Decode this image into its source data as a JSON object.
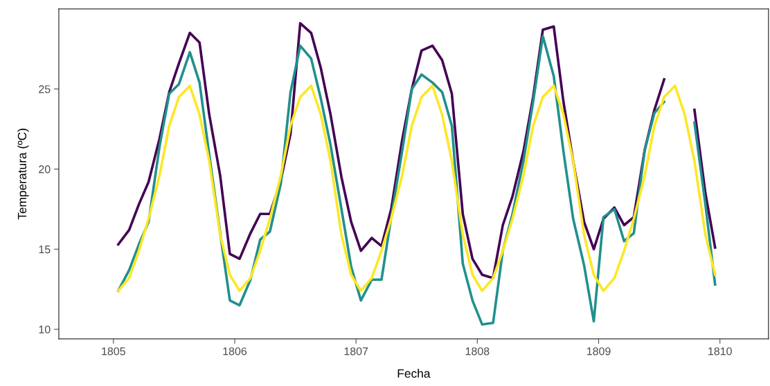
{
  "chart_data": {
    "type": "line",
    "xlabel": "Fecha",
    "ylabel": "Temperatura (ºC)",
    "x": [
      1805.04,
      1805.13,
      1805.21,
      1805.29,
      1805.38,
      1805.46,
      1805.54,
      1805.63,
      1805.71,
      1805.79,
      1805.88,
      1805.96,
      1806.04,
      1806.13,
      1806.21,
      1806.29,
      1806.38,
      1806.46,
      1806.54,
      1806.63,
      1806.71,
      1806.79,
      1806.88,
      1806.96,
      1807.04,
      1807.13,
      1807.21,
      1807.29,
      1807.38,
      1807.46,
      1807.54,
      1807.63,
      1807.71,
      1807.79,
      1807.88,
      1807.96,
      1808.04,
      1808.13,
      1808.21,
      1808.29,
      1808.38,
      1808.46,
      1808.54,
      1808.63,
      1808.71,
      1808.79,
      1808.88,
      1808.96,
      1809.04,
      1809.13,
      1809.21,
      1809.29,
      1809.38,
      1809.46,
      1809.54,
      1809.63,
      1809.71,
      1809.79,
      1809.88,
      1809.96
    ],
    "series": [
      {
        "color": "#440154",
        "values": [
          15.3,
          16.2,
          17.8,
          19.2,
          21.9,
          24.8,
          26.6,
          28.5,
          27.9,
          23.4,
          19.6,
          14.7,
          14.4,
          16.0,
          17.2,
          17.2,
          19.3,
          22.2,
          29.1,
          28.5,
          26.3,
          23.4,
          19.5,
          16.7,
          14.9,
          15.7,
          15.2,
          17.5,
          21.8,
          25.0,
          27.4,
          27.7,
          26.8,
          24.7,
          17.2,
          14.4,
          13.4,
          13.2,
          16.5,
          18.3,
          21.1,
          24.5,
          28.7,
          28.9,
          24.2,
          20.5,
          16.7,
          15.0,
          16.9,
          17.6,
          16.5,
          17.0,
          21.2,
          23.7,
          25.6,
          null,
          null,
          23.7,
          18.5,
          15.1
        ]
      },
      {
        "color": "#21908c",
        "values": [
          12.4,
          13.7,
          15.3,
          16.7,
          21.4,
          24.7,
          25.3,
          27.3,
          25.4,
          20.9,
          16.0,
          11.8,
          11.5,
          13.1,
          15.6,
          16.1,
          19.1,
          24.8,
          27.7,
          26.9,
          24.4,
          21.5,
          17.5,
          13.9,
          11.8,
          13.1,
          13.1,
          17.0,
          21.1,
          25.0,
          25.9,
          25.4,
          24.8,
          22.7,
          14.1,
          11.8,
          10.3,
          10.4,
          14.9,
          17.2,
          20.5,
          24.2,
          28.3,
          25.8,
          21.1,
          16.9,
          14.0,
          10.5,
          17.0,
          17.5,
          15.5,
          16.0,
          21.2,
          23.5,
          24.2,
          null,
          null,
          22.9,
          17.8,
          12.8
        ]
      },
      {
        "color": "#fde725",
        "values": [
          12.4,
          13.2,
          14.9,
          16.9,
          19.6,
          22.7,
          24.5,
          25.2,
          23.4,
          20.5,
          15.9,
          13.4,
          12.4,
          13.2,
          14.9,
          16.9,
          19.6,
          22.7,
          24.5,
          25.2,
          23.4,
          20.5,
          15.9,
          13.4,
          12.4,
          13.2,
          14.9,
          16.9,
          19.6,
          22.7,
          24.5,
          25.2,
          23.4,
          20.5,
          15.9,
          13.4,
          12.4,
          13.2,
          14.9,
          16.9,
          19.6,
          22.7,
          24.5,
          25.2,
          23.4,
          20.5,
          15.9,
          13.4,
          12.4,
          13.2,
          14.9,
          16.9,
          19.6,
          22.7,
          24.5,
          25.2,
          23.4,
          20.5,
          15.9,
          13.4
        ]
      }
    ],
    "xlim": [
      1804.55,
      1810.4
    ],
    "xticks": [
      1805,
      1806,
      1807,
      1808,
      1809,
      1810
    ],
    "ylim": [
      9.4,
      30.0
    ],
    "yticks": [
      10,
      15,
      20,
      25
    ],
    "grid": false,
    "legend": false,
    "marker": "none",
    "line_style": "solid"
  }
}
